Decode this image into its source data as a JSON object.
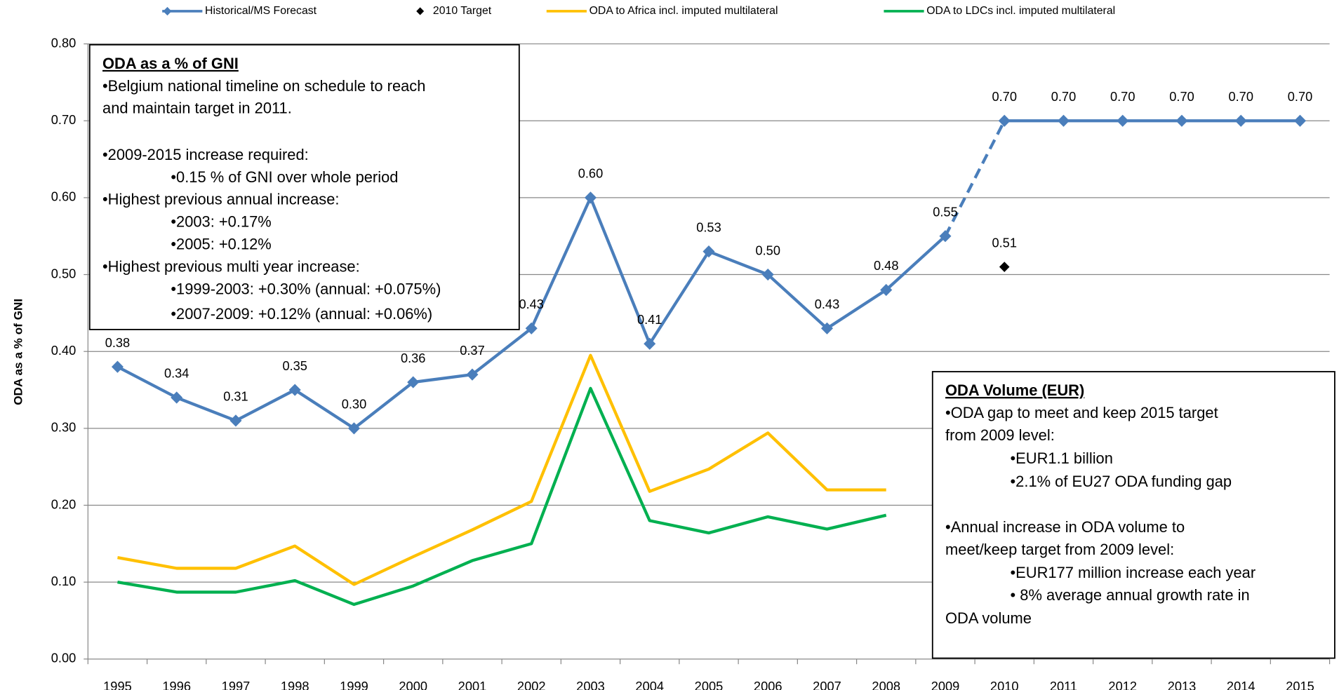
{
  "chart_data": {
    "type": "line",
    "y_label": "ODA as a % of GNI",
    "categories": [
      "1995",
      "1996",
      "1997",
      "1998",
      "1999",
      "2000",
      "2001",
      "2002",
      "2003",
      "2004",
      "2005",
      "2006",
      "2007",
      "2008",
      "2009",
      "2010",
      "2011",
      "2012",
      "2013",
      "2014",
      "2015"
    ],
    "ylim": [
      0,
      0.8
    ],
    "yticks": [
      {
        "value": 0,
        "label": "0.00"
      },
      {
        "value": 0.1,
        "label": "0.10"
      },
      {
        "value": 0.2,
        "label": "0.20"
      },
      {
        "value": 0.3,
        "label": "0.30"
      },
      {
        "value": 0.4,
        "label": "0.40"
      },
      {
        "value": 0.5,
        "label": "0.50"
      },
      {
        "value": 0.6,
        "label": "0.60"
      },
      {
        "value": 0.7,
        "label": "0.70"
      },
      {
        "value": 0.8,
        "label": "0.80"
      }
    ],
    "grid": true,
    "legend": "top",
    "series": [
      {
        "name": "Historical/MS Forecast",
        "color": "#4a7ebb",
        "values": [
          0.38,
          0.34,
          0.31,
          0.35,
          0.3,
          0.36,
          0.37,
          0.43,
          0.6,
          0.41,
          0.53,
          0.5,
          0.43,
          0.48,
          0.55,
          0.7,
          0.7,
          0.7,
          0.7,
          0.7,
          0.7
        ],
        "value_labels": [
          "0.38",
          "0.34",
          "0.31",
          "0.35",
          "0.30",
          "0.36",
          "0.37",
          "0.43",
          "0.60",
          "0.41",
          "0.53",
          "0.50",
          "0.43",
          "0.48",
          "0.55",
          "0.70",
          "0.70",
          "0.70",
          "0.70",
          "0.70",
          "0.70"
        ]
      },
      {
        "name": "2010 Target",
        "color": "#000000",
        "values": [
          null,
          null,
          null,
          null,
          null,
          null,
          null,
          null,
          null,
          null,
          null,
          null,
          null,
          null,
          null,
          0.51,
          null,
          null,
          null,
          null,
          null
        ],
        "value_labels": [
          null,
          null,
          null,
          null,
          null,
          null,
          null,
          null,
          null,
          null,
          null,
          null,
          null,
          null,
          null,
          "0.51",
          null,
          null,
          null,
          null,
          null
        ]
      },
      {
        "name": "ODA to Africa incl. imputed multilateral",
        "color": "#ffc000",
        "values": [
          0.132,
          0.118,
          0.118,
          0.147,
          0.097,
          0.133,
          0.168,
          0.205,
          0.395,
          0.218,
          0.247,
          0.294,
          0.22,
          0.22,
          null,
          null,
          null,
          null,
          null,
          null,
          null
        ]
      },
      {
        "name": "ODA to LDCs incl. imputed multilateral",
        "color": "#00b050",
        "values": [
          0.1,
          0.087,
          0.087,
          0.102,
          0.071,
          0.095,
          0.128,
          0.15,
          0.352,
          0.18,
          0.164,
          0.185,
          0.169,
          0.187,
          null,
          null,
          null,
          null,
          null,
          null,
          null
        ]
      }
    ],
    "annotations": [
      {
        "title": "ODA as a % of GNI",
        "lines": [
          "•Belgium national timeline on schedule to reach",
          "and maintain target in 2011.",
          "•2009-2015 increase required:",
          "•0.15 % of GNI over whole period",
          "•Highest previous annual increase:",
          "•2003: +0.17%",
          "•2005: +0.12%",
          "•Highest previous multi year increase:",
          "•1999-2003: +0.30% (annual: +0.075%)",
          "•2007-2009: +0.12% (annual: +0.06%)"
        ]
      },
      {
        "title": "ODA Volume (EUR)",
        "lines": [
          "•ODA gap to meet and keep 2015 target",
          "from 2009 level:",
          "•EUR1.1 billion",
          "•2.1% of EU27 ODA funding gap",
          "•Annual increase in ODA volume to",
          "meet/keep target from 2009 level:",
          "•EUR177 million increase each year",
          "• 8% average annual growth rate in",
          "ODA volume"
        ]
      }
    ]
  }
}
